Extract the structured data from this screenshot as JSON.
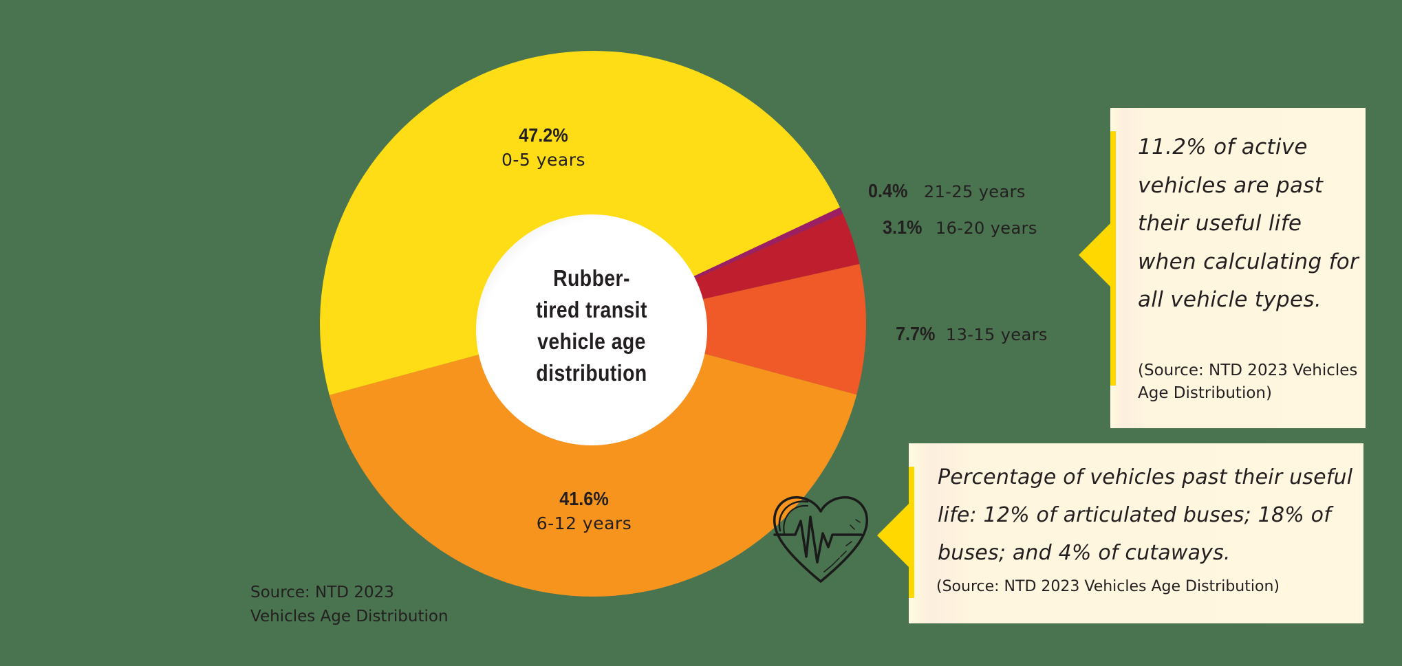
{
  "chart_data": {
    "type": "pie",
    "variant": "donut",
    "title": "Rubber-tired transit vehicle age distribution",
    "categories": [
      "0-5 years",
      "6-12 years",
      "13-15 years",
      "16-20 years",
      "21-25 years"
    ],
    "values": [
      47.2,
      41.6,
      7.7,
      3.1,
      0.4
    ],
    "unit": "%",
    "colors": [
      "#FEDD17",
      "#F7941D",
      "#F05A28",
      "#BE1E2D",
      "#9B1F62"
    ],
    "source": "NTD 2023 Vehicles Age Distribution"
  },
  "colors": {
    "background": "#4a7350",
    "callout_bg": "#fff7e0",
    "callout_accent": "#ffd800",
    "text": "#231f20"
  },
  "center": {
    "title": "Rubber-\ntired transit\nvehicle age\ndistribution"
  },
  "labels": {
    "s0": {
      "pct": "47.2%",
      "range": "0-5 years"
    },
    "s1": {
      "pct": "41.6%",
      "range": "6-12 years"
    },
    "s2": {
      "pct": "7.7%",
      "range": "13-15 years"
    },
    "s3": {
      "pct": "3.1%",
      "range": "16-20 years"
    },
    "s4": {
      "pct": "0.4%",
      "range": "21-25 years"
    }
  },
  "source_note": "Source: NTD 2023\nVehicles Age Distribution",
  "callouts": [
    {
      "text": "11.2% of active vehicles are past their useful life when calculating for all vehicle types.",
      "source": "(Source: NTD 2023 Vehicles Age Distribution)"
    },
    {
      "text": "Percentage of vehicles past their useful life: 12% of articulated buses; 18% of buses; and 4% of cutaways.",
      "source": "(Source: NTD 2023 Vehicles Age Distribution)",
      "icon": "heart-pulse-icon"
    }
  ]
}
